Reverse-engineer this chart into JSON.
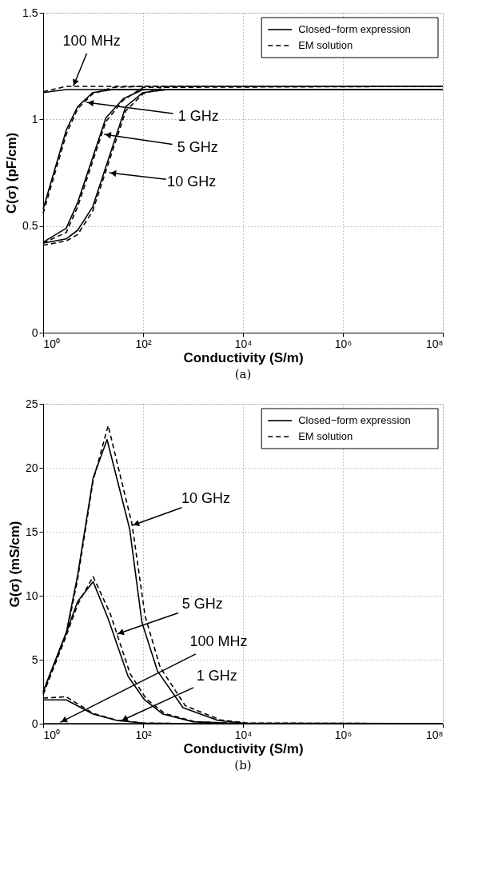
{
  "chart_data": [
    {
      "type": "line",
      "title": "(a)",
      "xlabel": "Conductivity (S/m)",
      "ylabel": "C(σ) (pF/cm)",
      "log": "x",
      "grid": true,
      "legend": "top right",
      "xlim": [
        1,
        100000000
      ],
      "xticks": [
        {
          "value": 1,
          "label": "10⁰"
        },
        {
          "value": 100,
          "label": "10²"
        },
        {
          "value": 10000,
          "label": "10⁴"
        },
        {
          "value": 1000000,
          "label": "10⁶"
        },
        {
          "value": 100000000,
          "label": "10⁸"
        }
      ],
      "ylim": [
        0,
        1.5
      ],
      "yticks": [
        0,
        0.5,
        1,
        1.5
      ],
      "series": [
        {
          "name": "Closed−form expression",
          "color": "#000000",
          "line_style": "solid",
          "x": [
            1,
            2.9,
            10,
            100,
            100000000
          ],
          "values": [
            1.126,
            1.14,
            1.14,
            1.14,
            1.14
          ]
        },
        {
          "name": "EM solution",
          "color": "#000000",
          "line_style": "dashed",
          "x": [
            1,
            2.9,
            10,
            100000000
          ],
          "values": [
            1.13,
            1.155,
            1.155,
            1.155
          ]
        },
        {
          "color": "#000000",
          "line_style": "solid",
          "x": [
            1,
            2.9,
            4.9,
            9.8,
            25,
            100,
            100000000
          ],
          "values": [
            0.58,
            0.95,
            1.06,
            1.126,
            1.14,
            1.14,
            1.14
          ]
        },
        {
          "color": "#000000",
          "line_style": "dashed",
          "x": [
            1,
            2.9,
            4.9,
            9.8,
            25,
            100,
            100000000
          ],
          "values": [
            0.56,
            0.93,
            1.05,
            1.12,
            1.15,
            1.155,
            1.155
          ]
        },
        {
          "color": "#000000",
          "line_style": "solid",
          "x": [
            1,
            2.9,
            4.9,
            18,
            40,
            100,
            100000000
          ],
          "values": [
            0.424,
            0.49,
            0.61,
            1.007,
            1.097,
            1.14,
            1.14
          ]
        },
        {
          "color": "#000000",
          "line_style": "dashed",
          "x": [
            1,
            2.9,
            4.9,
            18,
            40,
            100,
            100000000
          ],
          "values": [
            0.42,
            0.47,
            0.59,
            0.99,
            1.09,
            1.15,
            1.155
          ]
        },
        {
          "color": "#000000",
          "line_style": "solid",
          "x": [
            1,
            2.9,
            4.9,
            9.8,
            45,
            100,
            316,
            100000000
          ],
          "values": [
            0.42,
            0.44,
            0.48,
            0.59,
            1.06,
            1.126,
            1.14,
            1.14
          ]
        },
        {
          "color": "#000000",
          "line_style": "dashed",
          "x": [
            1,
            2.9,
            4.9,
            9.8,
            45,
            100,
            316,
            100000000
          ],
          "values": [
            0.41,
            0.43,
            0.46,
            0.57,
            1.04,
            1.12,
            1.155,
            1.155
          ]
        }
      ],
      "annotations": [
        {
          "text": "100 MHz",
          "x": 4,
          "y": 1.155
        },
        {
          "text": "1 GHz",
          "x": 7.4,
          "y": 1.08
        },
        {
          "text": "5 GHz",
          "x": 16.6,
          "y": 0.93
        },
        {
          "text": "10 GHz",
          "x": 21,
          "y": 0.75
        }
      ]
    },
    {
      "type": "line",
      "title": "(b)",
      "xlabel": "Conductivity (S/m)",
      "ylabel": "G(σ) (mS/cm)",
      "log": "x",
      "grid": true,
      "legend": "top right",
      "xlim": [
        1,
        100000000
      ],
      "xticks": [
        {
          "value": 1,
          "label": "10⁰"
        },
        {
          "value": 100,
          "label": "10²"
        },
        {
          "value": 10000,
          "label": "10⁴"
        },
        {
          "value": 1000000,
          "label": "10⁶"
        },
        {
          "value": 100000000,
          "label": "10⁸"
        }
      ],
      "ylim": [
        0,
        25
      ],
      "yticks": [
        0,
        5,
        10,
        15,
        20,
        25
      ],
      "series": [
        {
          "name": "Closed−form expression",
          "color": "#000000",
          "line_style": "solid",
          "x": [
            1,
            2.9,
            4.9,
            10,
            19,
            54,
            95,
            195,
            630,
            3160,
            10000,
            100000000
          ],
          "values": [
            2.5,
            7.1,
            11.6,
            19.2,
            22.2,
            15.2,
            7.9,
            4.1,
            1.25,
            0.25,
            0.05,
            0
          ]
        },
        {
          "name": "EM solution",
          "color": "#000000",
          "line_style": "dashed",
          "x": [
            1,
            2.9,
            4.9,
            10,
            20,
            60,
            110,
            220,
            700,
            3500,
            12000,
            100000000
          ],
          "values": [
            2.3,
            6.9,
            11.3,
            19.0,
            23.3,
            15.6,
            8.4,
            4.4,
            1.4,
            0.3,
            0.05,
            0
          ]
        },
        {
          "color": "#000000",
          "line_style": "solid",
          "x": [
            1,
            100000000
          ],
          "values": [
            0,
            0
          ]
        },
        {
          "color": "#000000",
          "line_style": "solid",
          "x": [
            1,
            2.9,
            10,
            30,
            100,
            1000,
            100000000
          ],
          "values": [
            1.86,
            1.86,
            0.75,
            0.25,
            0.05,
            0,
            0
          ]
        },
        {
          "color": "#000000",
          "line_style": "dashed",
          "x": [
            1,
            2.9,
            10,
            30,
            100,
            1000,
            100000000
          ],
          "values": [
            2.0,
            2.1,
            0.8,
            0.27,
            0.05,
            0,
            0
          ]
        },
        {
          "color": "#000000",
          "line_style": "solid",
          "x": [
            1,
            2.9,
            4.9,
            10,
            20,
            50,
            107,
            250,
            1000,
            10000,
            100000000
          ],
          "values": [
            2.5,
            7.1,
            9.55,
            11.1,
            8.2,
            3.7,
            1.86,
            0.75,
            0.15,
            0,
            0
          ]
        },
        {
          "color": "#000000",
          "line_style": "dashed",
          "x": [
            1,
            2.9,
            4.9,
            10,
            22,
            55,
            115,
            270,
            1100,
            10000,
            100000000
          ],
          "values": [
            2.3,
            6.9,
            9.3,
            11.5,
            8.6,
            3.9,
            1.95,
            0.8,
            0.15,
            0,
            0
          ]
        }
      ],
      "annotations": [
        {
          "text": "10 GHz",
          "x": 61,
          "y": 15.5
        },
        {
          "text": "5 GHz",
          "x": 30,
          "y": 7.0
        },
        {
          "text": "100 MHz",
          "x": 2.2,
          "y": 0.1
        },
        {
          "text": "1 GHz",
          "x": 36,
          "y": 0.22
        }
      ]
    }
  ]
}
